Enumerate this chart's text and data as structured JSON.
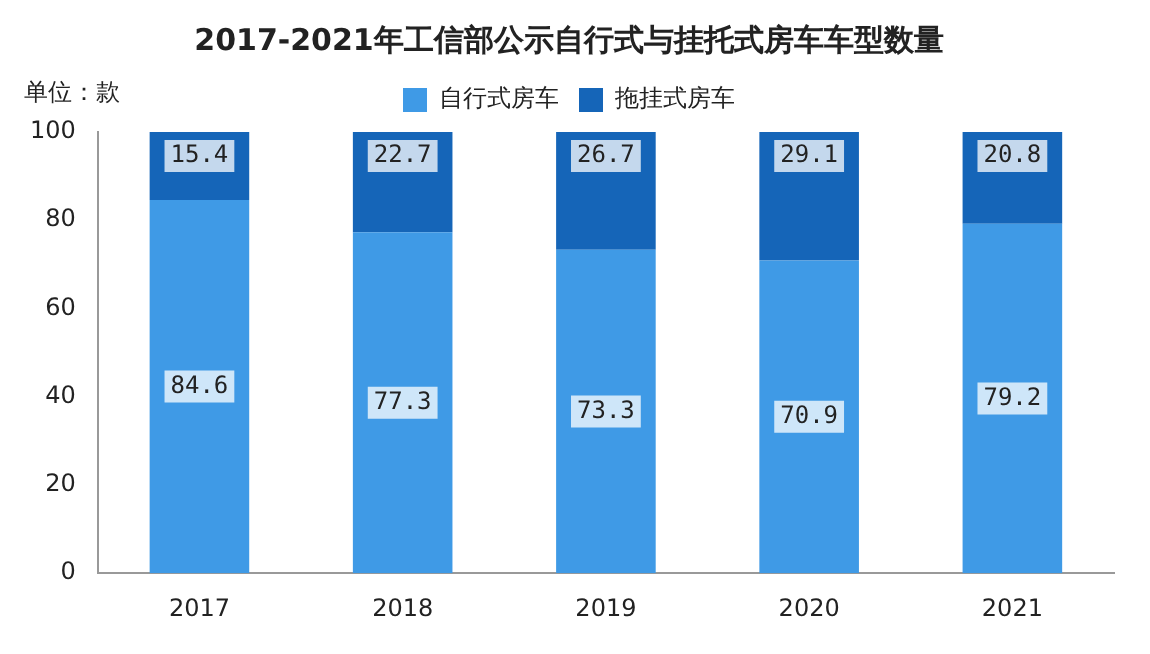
{
  "chart_data": {
    "type": "bar",
    "title": "2017-2021年工信部公示自行式与挂托式房车车型数量",
    "ylabel": "单位：款",
    "categories": [
      "2017",
      "2018",
      "2019",
      "2020",
      "2021"
    ],
    "stacked": true,
    "series": [
      {
        "name": "自行式房车",
        "color": "#3f9ae6",
        "values": [
          84.6,
          77.3,
          73.3,
          70.9,
          79.2
        ]
      },
      {
        "name": "拖挂式房车",
        "color": "#1565b8",
        "values": [
          15.4,
          22.7,
          26.7,
          29.1,
          20.8
        ]
      }
    ],
    "ylim": [
      0,
      100
    ],
    "yticks": [
      0,
      20,
      40,
      60,
      80,
      100
    ],
    "grid": false,
    "legend": "top",
    "data_labels": true
  }
}
